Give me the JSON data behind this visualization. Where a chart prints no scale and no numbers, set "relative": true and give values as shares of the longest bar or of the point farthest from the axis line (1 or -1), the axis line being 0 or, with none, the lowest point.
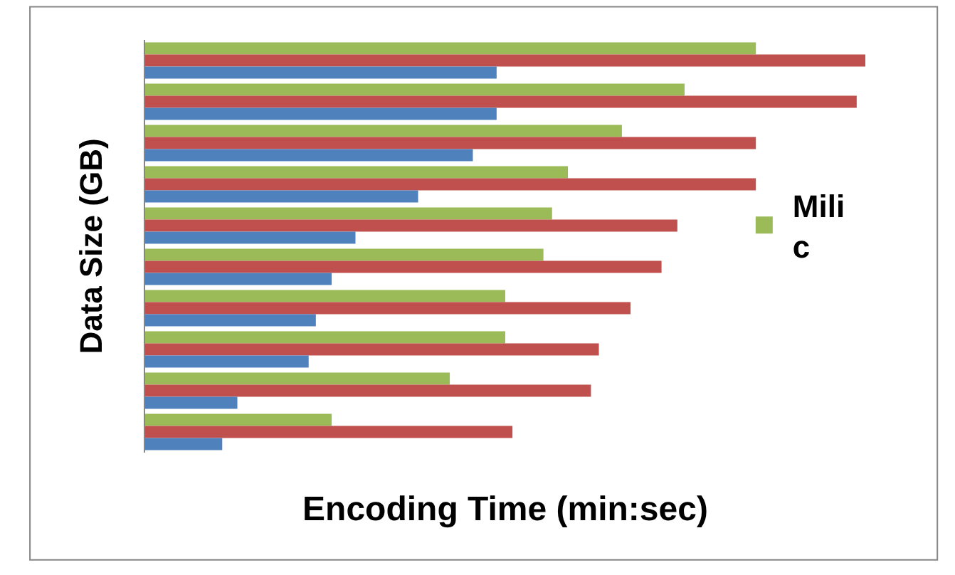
{
  "chart_data": {
    "type": "bar",
    "orientation": "horizontal",
    "relative": true,
    "xlabel": "Encoding Time (min:sec)",
    "ylabel": "Data Size (GB)",
    "categories": [
      null,
      null,
      null,
      null,
      null,
      null,
      null,
      null,
      null,
      null
    ],
    "series": [
      {
        "name": "Milic",
        "color": "#9bbb59",
        "values": [
          0.848,
          0.749,
          0.662,
          0.587,
          0.565,
          0.553,
          0.5,
          0.5,
          0.423,
          0.259
        ]
      },
      {
        "color": "#c0504d",
        "values": [
          1,
          0.988,
          0.848,
          0.848,
          0.739,
          0.717,
          0.674,
          0.63,
          0.619,
          0.51
        ]
      },
      {
        "color": "#4f81bd",
        "values": [
          0.488,
          0.488,
          0.455,
          0.379,
          0.292,
          0.259,
          0.237,
          0.227,
          0.128,
          0.107
        ]
      }
    ],
    "legend": "right"
  }
}
